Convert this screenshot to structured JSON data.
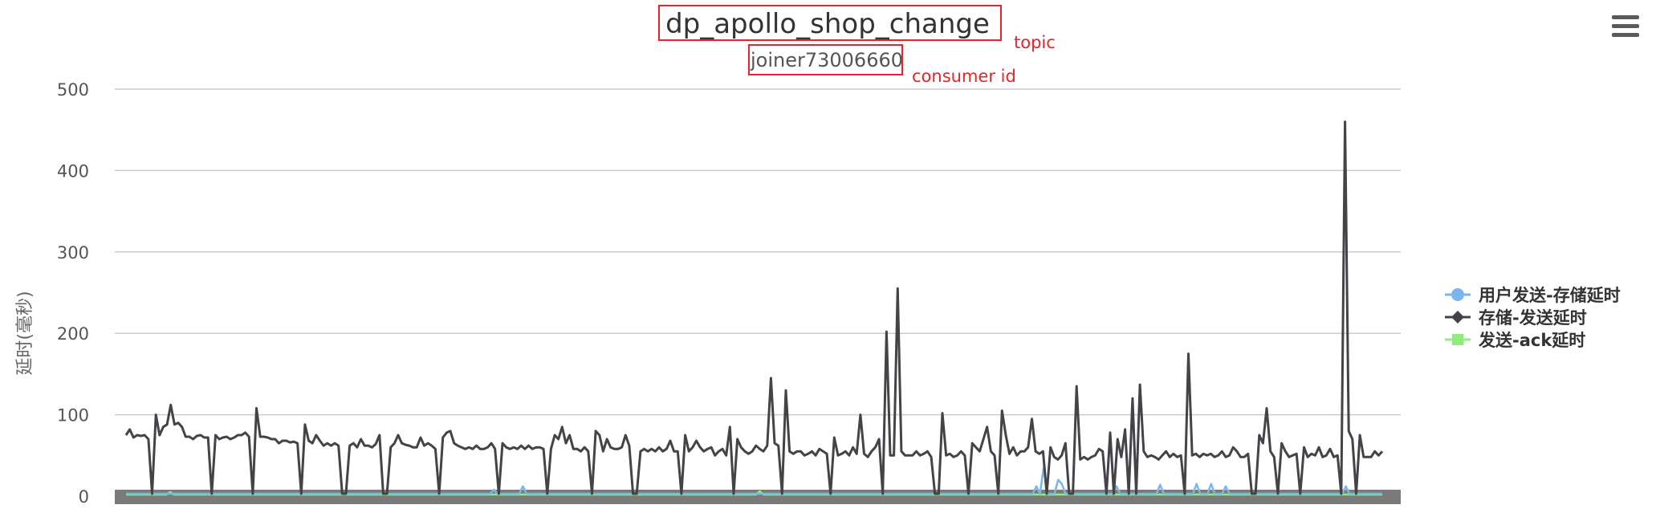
{
  "menu": {
    "icon": "hamburger-menu-icon"
  },
  "annotations": {
    "topic_note": "topic",
    "consumer_note": "consumer id",
    "color": "#e8232a"
  },
  "chart_data": {
    "type": "line",
    "title": "dp_apollo_shop_change",
    "subtitle": "joiner73006660",
    "ylabel": "延时(毫秒)",
    "xlabel": "",
    "ylim": [
      0,
      500
    ],
    "yticks": [
      "0",
      "100",
      "200",
      "300",
      "400",
      "500"
    ],
    "grid": true,
    "legend_position": "right",
    "series": [
      {
        "name": "用户发送-存储延时",
        "color": "#7cb5ec",
        "marker": "circle",
        "values": [
          3,
          3,
          3,
          3,
          3,
          3,
          3,
          3,
          3,
          3,
          3,
          3,
          3,
          3,
          3,
          3,
          3,
          3,
          3,
          3,
          3,
          3,
          3,
          3,
          3,
          3,
          3,
          3,
          3,
          3,
          3,
          3,
          3,
          3,
          3,
          3,
          3,
          3,
          3,
          3,
          3,
          3,
          3,
          3,
          3,
          3,
          3,
          3,
          3,
          3,
          3,
          3,
          3,
          3,
          3,
          3,
          3,
          3,
          3,
          3,
          3,
          3,
          3,
          3,
          3,
          3,
          3,
          3,
          3,
          3,
          3,
          3,
          3,
          3,
          3,
          3,
          3,
          3,
          3,
          3,
          3,
          3,
          3,
          3,
          3,
          3,
          3,
          3,
          3,
          3,
          3,
          3,
          3,
          3,
          3,
          3,
          3,
          3,
          3,
          3,
          3,
          8,
          3,
          3,
          3,
          3,
          3,
          3,
          3,
          12,
          3,
          3,
          3,
          3,
          3,
          3,
          3,
          3,
          3,
          3,
          3,
          3,
          3,
          3,
          3,
          3,
          3,
          3,
          3,
          3,
          3,
          3,
          3,
          3,
          3,
          3,
          3,
          3,
          3,
          3,
          3,
          3,
          3,
          3,
          3,
          3,
          3,
          3,
          3,
          3,
          3,
          3,
          3,
          3,
          3,
          3,
          3,
          3,
          3,
          3,
          3,
          3,
          3,
          3,
          3,
          3,
          3,
          3,
          3,
          3,
          3,
          3,
          3,
          3,
          3,
          3,
          3,
          3,
          3,
          3,
          3,
          3,
          3,
          3,
          3,
          3,
          3,
          3,
          3,
          3,
          3,
          3,
          3,
          3,
          3,
          3,
          3,
          3,
          3,
          3,
          3,
          3,
          3,
          3,
          3,
          3,
          3,
          3,
          3,
          3,
          3,
          3,
          3,
          3,
          3,
          3,
          3,
          3,
          3,
          3,
          3,
          3,
          3,
          3,
          3,
          3,
          3,
          3,
          3,
          3,
          3,
          3,
          3,
          3,
          3,
          3,
          3,
          3,
          3,
          3,
          3,
          3,
          3,
          3,
          3,
          3,
          3,
          3,
          3,
          3,
          12,
          3,
          35,
          3,
          3,
          3,
          20,
          15,
          3,
          3,
          3,
          3,
          3,
          3,
          3,
          3,
          3,
          3,
          3,
          3,
          3,
          3,
          12,
          3,
          3,
          3,
          3,
          3,
          3,
          3,
          3,
          3,
          3,
          3,
          14,
          3,
          3,
          3,
          3,
          3,
          3,
          3,
          3,
          3,
          15,
          3,
          3,
          3,
          15,
          3,
          3,
          3,
          12,
          3,
          3,
          3,
          3,
          3,
          3,
          3,
          3,
          3,
          3,
          3,
          3,
          3,
          3,
          3,
          3,
          3,
          3,
          3,
          3,
          3,
          3,
          3,
          3,
          3,
          3,
          3,
          3,
          3,
          3,
          3,
          3,
          12,
          3,
          3,
          3,
          3,
          3,
          3,
          3,
          3,
          3,
          3
        ]
      },
      {
        "name": "存储-发送延时",
        "color": "#434348",
        "marker": "diamond",
        "values": [
          75,
          82,
          72,
          75,
          74,
          75,
          70,
          3,
          100,
          75,
          85,
          88,
          112,
          88,
          90,
          85,
          73,
          73,
          70,
          74,
          75,
          72,
          72,
          3,
          75,
          70,
          72,
          73,
          70,
          72,
          75,
          75,
          78,
          73,
          3,
          108,
          73,
          73,
          72,
          70,
          70,
          65,
          68,
          68,
          66,
          67,
          65,
          3,
          88,
          68,
          65,
          75,
          68,
          62,
          65,
          62,
          65,
          62,
          3,
          3,
          62,
          65,
          60,
          70,
          62,
          62,
          60,
          64,
          75,
          3,
          3,
          60,
          65,
          75,
          65,
          63,
          62,
          60,
          60,
          72,
          62,
          65,
          62,
          58,
          3,
          72,
          78,
          80,
          65,
          62,
          60,
          58,
          60,
          58,
          62,
          58,
          58,
          60,
          65,
          58,
          3,
          65,
          60,
          58,
          60,
          58,
          62,
          58,
          62,
          58,
          60,
          60,
          58,
          3,
          58,
          75,
          70,
          85,
          65,
          75,
          58,
          58,
          55,
          60,
          55,
          3,
          80,
          75,
          55,
          70,
          60,
          58,
          58,
          60,
          75,
          62,
          3,
          3,
          55,
          58,
          55,
          58,
          55,
          60,
          55,
          58,
          68,
          55,
          55,
          3,
          75,
          55,
          60,
          68,
          60,
          55,
          58,
          60,
          50,
          55,
          58,
          50,
          85,
          3,
          70,
          60,
          55,
          52,
          55,
          62,
          58,
          55,
          62,
          145,
          65,
          62,
          3,
          130,
          55,
          52,
          55,
          55,
          50,
          52,
          55,
          50,
          58,
          55,
          52,
          3,
          72,
          50,
          52,
          55,
          50,
          60,
          52,
          100,
          52,
          48,
          55,
          60,
          70,
          3,
          202,
          50,
          50,
          255,
          55,
          50,
          50,
          50,
          55,
          50,
          52,
          55,
          48,
          3,
          3,
          102,
          50,
          52,
          48,
          50,
          55,
          50,
          3,
          65,
          60,
          55,
          70,
          85,
          55,
          50,
          3,
          105,
          75,
          52,
          60,
          50,
          55,
          55,
          60,
          95,
          55,
          52,
          55,
          3,
          60,
          48,
          45,
          50,
          65,
          3,
          3,
          135,
          45,
          48,
          45,
          48,
          50,
          58,
          55,
          3,
          78,
          3,
          70,
          48,
          82,
          3,
          120,
          3,
          137,
          55,
          48,
          50,
          48,
          45,
          50,
          55,
          48,
          52,
          48,
          50,
          3,
          175,
          50,
          52,
          48,
          52,
          50,
          52,
          48,
          50,
          55,
          48,
          50,
          60,
          55,
          48,
          48,
          52,
          3,
          3,
          75,
          65,
          108,
          55,
          48,
          3,
          65,
          55,
          48,
          50,
          52,
          3,
          60,
          48,
          52,
          50,
          60,
          48,
          50,
          58,
          48,
          50,
          3,
          460,
          80,
          70,
          3,
          75,
          48,
          48,
          48,
          55,
          50,
          55
        ]
      },
      {
        "name": "发送-ack延时",
        "color": "#90ed7d",
        "marker": "square",
        "values": [
          2,
          2,
          2,
          2,
          2,
          2,
          2,
          2,
          2,
          2,
          2,
          2,
          5,
          2,
          2,
          2,
          2,
          2,
          2,
          2,
          2,
          2,
          2,
          2,
          2,
          2,
          2,
          2,
          2,
          2,
          2,
          2,
          2,
          2,
          2,
          2,
          2,
          2,
          2,
          2,
          2,
          2,
          2,
          2,
          2,
          2,
          2,
          2,
          2,
          2,
          2,
          2,
          2,
          2,
          2,
          2,
          2,
          2,
          2,
          2,
          2,
          2,
          2,
          2,
          2,
          2,
          2,
          2,
          2,
          2,
          2,
          2,
          2,
          2,
          2,
          2,
          2,
          2,
          2,
          2,
          2,
          2,
          2,
          2,
          2,
          2,
          2,
          2,
          2,
          2,
          2,
          2,
          2,
          2,
          2,
          2,
          2,
          2,
          2,
          2,
          2,
          2,
          2,
          2,
          2,
          2,
          2,
          2,
          2,
          2,
          2,
          2,
          2,
          2,
          2,
          2,
          2,
          2,
          2,
          2,
          2,
          2,
          2,
          2,
          2,
          2,
          2,
          2,
          2,
          2,
          2,
          2,
          2,
          2,
          2,
          2,
          2,
          2,
          2,
          2,
          2,
          2,
          2,
          2,
          2,
          2,
          2,
          2,
          2,
          2,
          2,
          2,
          2,
          2,
          2,
          2,
          2,
          2,
          2,
          2,
          2,
          2,
          2,
          2,
          2,
          2,
          2,
          2,
          2,
          2,
          2,
          2,
          6,
          2,
          2,
          2,
          2,
          2,
          2,
          2,
          2,
          2,
          2,
          2,
          2,
          2,
          2,
          2,
          2,
          2,
          2,
          2,
          2,
          2,
          2,
          2,
          2,
          2,
          2,
          2,
          2,
          2,
          2,
          2,
          2,
          2,
          2,
          2,
          2,
          2,
          2,
          2,
          2,
          2,
          2,
          2,
          2,
          2,
          2,
          2,
          2,
          2,
          2,
          2,
          2,
          2,
          2,
          2,
          2,
          2,
          2,
          2,
          2,
          2,
          2,
          2,
          2,
          2,
          2,
          2,
          2,
          2,
          2,
          2,
          2,
          2,
          2,
          2,
          2,
          2,
          2,
          2,
          2,
          2,
          2,
          2,
          2,
          2,
          2,
          2,
          2,
          2,
          2,
          2,
          2,
          2,
          2,
          2,
          2,
          2,
          2,
          2,
          2,
          2,
          2,
          2,
          2,
          2,
          2,
          2,
          2,
          2,
          2,
          2,
          2,
          2,
          2,
          2,
          2,
          2,
          2,
          2,
          2,
          2,
          2,
          2,
          2,
          2,
          2,
          2,
          2,
          2,
          2,
          2,
          2,
          2,
          2,
          2,
          2,
          2,
          2,
          2,
          2,
          2,
          2,
          2,
          2,
          2,
          2,
          2,
          2,
          2,
          2,
          2,
          2,
          2,
          2,
          2,
          2,
          2,
          2,
          2,
          2,
          2,
          2,
          2,
          2,
          2,
          2,
          2,
          2,
          2
        ]
      }
    ]
  }
}
